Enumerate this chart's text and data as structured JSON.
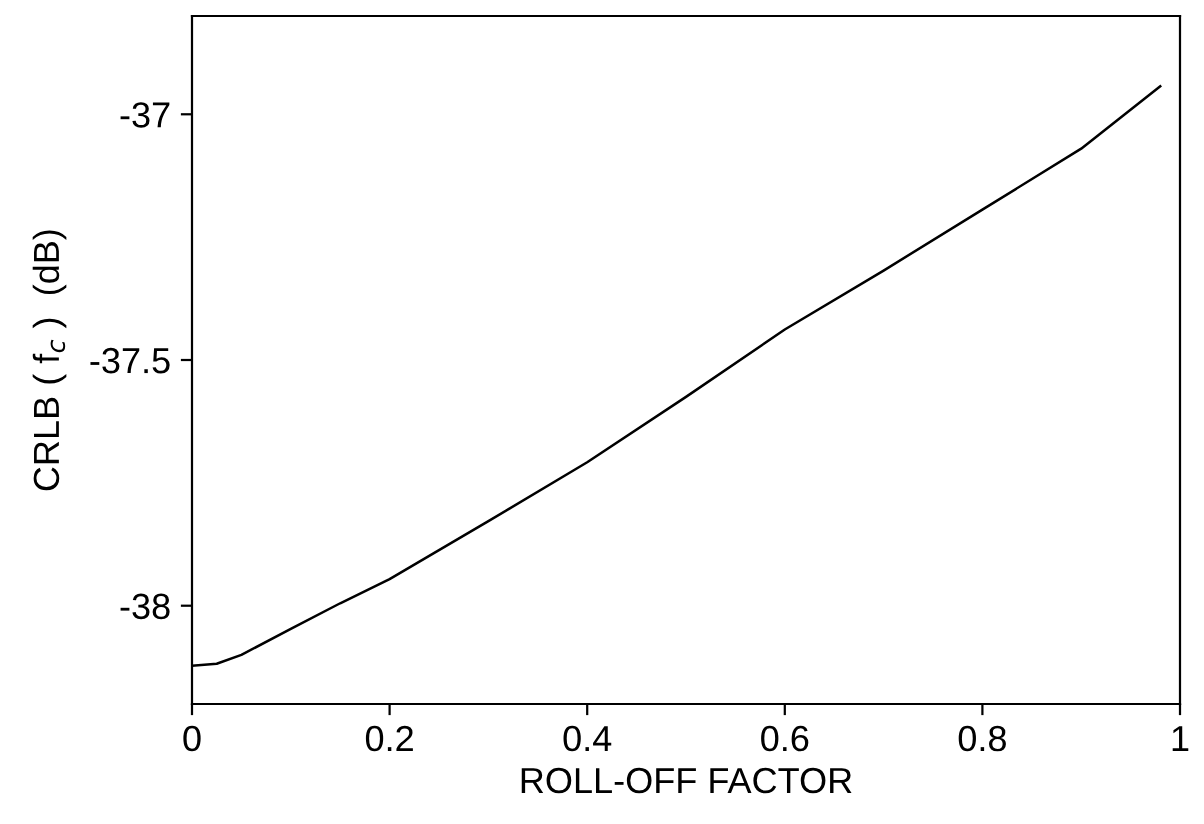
{
  "chart_data": {
    "type": "line",
    "xlabel": "ROLL-OFF FACTOR",
    "ylabel": "CRLB ( f$_{c}$ )  (dB)",
    "x": [
      0,
      0.025,
      0.05,
      0.1,
      0.15,
      0.2,
      0.3,
      0.4,
      0.5,
      0.6,
      0.7,
      0.8,
      0.9,
      0.98
    ],
    "series": [
      {
        "color": "#000000",
        "values": [
          -38.122,
          -38.118,
          -38.1,
          -38.047,
          -37.995,
          -37.946,
          -37.828,
          -37.708,
          -37.575,
          -37.438,
          -37.318,
          -37.194,
          -37.07,
          -36.943
        ]
      }
    ],
    "xlim": [
      0,
      1
    ],
    "xticks": [
      0,
      0.2,
      0.4,
      0.6,
      0.8,
      1
    ],
    "ylim": [
      -38.2,
      -36.8
    ],
    "yticks": [
      -38,
      -37.5,
      -37
    ],
    "grid": false,
    "legend": false,
    "marker": "none",
    "line_style": "solid"
  }
}
